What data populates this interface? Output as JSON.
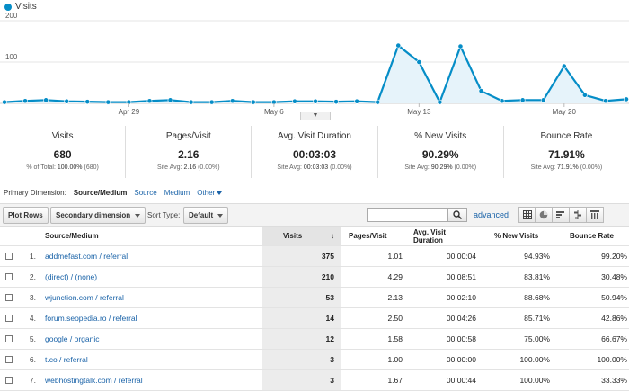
{
  "chart": {
    "legend_label": "Visits",
    "y_ticks": [
      "200",
      "100"
    ],
    "x_labels": [
      "Apr 29",
      "May 6",
      "May 13",
      "May 20"
    ],
    "collapse_label": "▼",
    "colors": {
      "line": "#058dc7",
      "fill": "#e6f3fa"
    }
  },
  "chart_data": {
    "type": "area",
    "series": [
      {
        "name": "Visits",
        "values": [
          3,
          6,
          8,
          5,
          4,
          3,
          3,
          6,
          8,
          3,
          3,
          6,
          3,
          3,
          5,
          5,
          4,
          5,
          3,
          140,
          100,
          3,
          138,
          30,
          6,
          8,
          8,
          90,
          20,
          6,
          10
        ]
      }
    ],
    "x_labels": [
      "Apr 29",
      "May 6",
      "May 13",
      "May 20"
    ],
    "y_ticks": [
      100,
      200
    ],
    "ylim": [
      0,
      200
    ],
    "grid": true
  },
  "scorecards": [
    {
      "label": "Visits",
      "value": "680",
      "sub_prefix": "% of Total:",
      "sub_bold": "100.00%",
      "sub_suffix": "(680)"
    },
    {
      "label": "Pages/Visit",
      "value": "2.16",
      "sub_prefix": "Site Avg:",
      "sub_bold": "2.16",
      "sub_suffix": "(0.00%)"
    },
    {
      "label": "Avg. Visit Duration",
      "value": "00:03:03",
      "sub_prefix": "Site Avg:",
      "sub_bold": "00:03:03",
      "sub_suffix": "(0.00%)"
    },
    {
      "label": "% New Visits",
      "value": "90.29%",
      "sub_prefix": "Site Avg:",
      "sub_bold": "90.29%",
      "sub_suffix": "(0.00%)"
    },
    {
      "label": "Bounce Rate",
      "value": "71.91%",
      "sub_prefix": "Site Avg:",
      "sub_bold": "71.91%",
      "sub_suffix": "(0.00%)"
    }
  ],
  "primary_dimension": {
    "label": "Primary Dimension:",
    "active": "Source/Medium",
    "options": [
      "Source",
      "Medium",
      "Other"
    ]
  },
  "toolbar": {
    "plot_rows": "Plot Rows",
    "secondary_dimension": "Secondary dimension",
    "sort_type_label": "Sort Type:",
    "sort_type_value": "Default",
    "search_value": "",
    "advanced": "advanced"
  },
  "table": {
    "headers": {
      "source_medium": "Source/Medium",
      "visits": "Visits",
      "sort_arrow": "↓",
      "pages_per_visit": "Pages/Visit",
      "avg_visit_duration": "Avg. Visit Duration",
      "new_visits": "% New Visits",
      "bounce_rate": "Bounce Rate"
    },
    "rows": [
      {
        "num": "1.",
        "source": "addmefast.com / referral",
        "visits": "375",
        "ppv": "1.01",
        "avd": "00:00:04",
        "nv": "94.93%",
        "br": "99.20%"
      },
      {
        "num": "2.",
        "source": "(direct) / (none)",
        "visits": "210",
        "ppv": "4.29",
        "avd": "00:08:51",
        "nv": "83.81%",
        "br": "30.48%"
      },
      {
        "num": "3.",
        "source": "wjunction.com / referral",
        "visits": "53",
        "ppv": "2.13",
        "avd": "00:02:10",
        "nv": "88.68%",
        "br": "50.94%"
      },
      {
        "num": "4.",
        "source": "forum.seopedia.ro / referral",
        "visits": "14",
        "ppv": "2.50",
        "avd": "00:04:26",
        "nv": "85.71%",
        "br": "42.86%"
      },
      {
        "num": "5.",
        "source": "google / organic",
        "visits": "12",
        "ppv": "1.58",
        "avd": "00:00:58",
        "nv": "75.00%",
        "br": "66.67%"
      },
      {
        "num": "6.",
        "source": "t.co / referral",
        "visits": "3",
        "ppv": "1.00",
        "avd": "00:00:00",
        "nv": "100.00%",
        "br": "100.00%"
      },
      {
        "num": "7.",
        "source": "webhostingtalk.com / referral",
        "visits": "3",
        "ppv": "1.67",
        "avd": "00:00:44",
        "nv": "100.00%",
        "br": "33.33%"
      }
    ]
  }
}
